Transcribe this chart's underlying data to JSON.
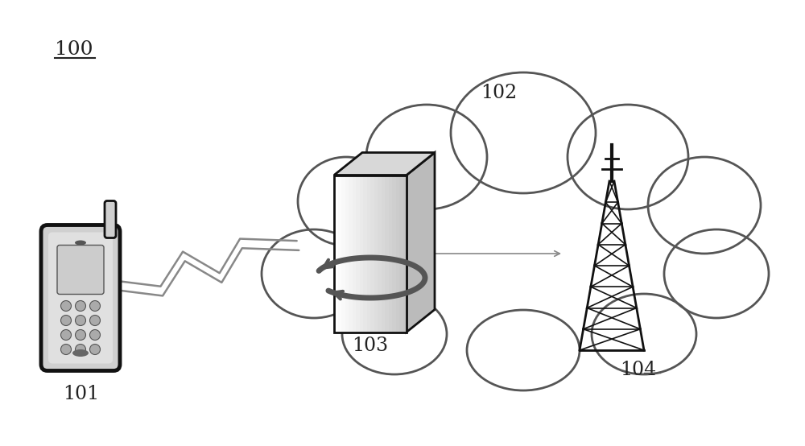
{
  "bg_color": "#ffffff",
  "label_100": "100",
  "label_101": "101",
  "label_102": "102",
  "label_103": "103",
  "label_104": "104",
  "figsize": [
    10.0,
    5.54
  ],
  "dpi": 100
}
